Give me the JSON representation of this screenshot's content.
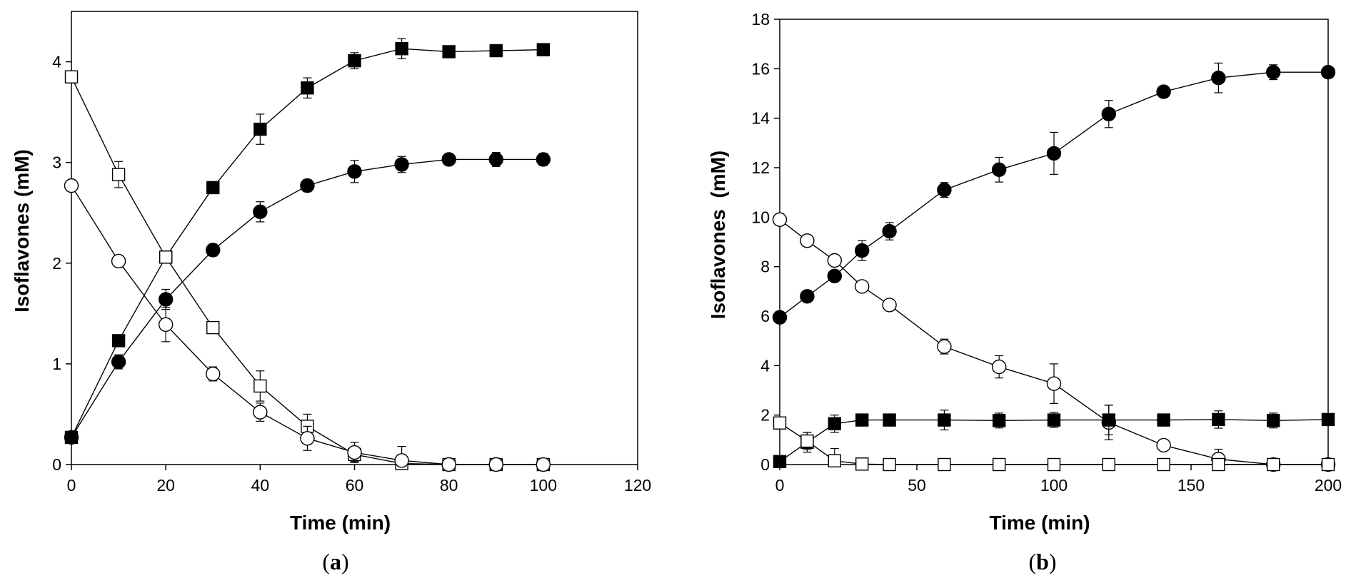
{
  "chart_data": [
    {
      "type": "line",
      "panel_label": "a",
      "xlabel": "Time (min)",
      "ylabel": "Isoflavones (mM)",
      "xlim": [
        0,
        120
      ],
      "ylim": [
        0,
        4.5
      ],
      "xticks": [
        0,
        20,
        40,
        60,
        80,
        100,
        120
      ],
      "yticks": [
        0,
        1,
        2,
        3,
        4
      ],
      "series": [
        {
          "name": "filled squares",
          "marker": "square",
          "filled": true,
          "x": [
            0,
            10,
            20,
            30,
            40,
            50,
            60,
            70,
            80,
            90,
            100
          ],
          "y": [
            0.27,
            1.23,
            2.06,
            2.75,
            3.33,
            3.74,
            4.01,
            4.13,
            4.1,
            4.11,
            4.12
          ],
          "err": [
            0.03,
            0.05,
            0.05,
            0.06,
            0.15,
            0.1,
            0.08,
            0.1,
            0.04,
            0.03,
            0.03
          ]
        },
        {
          "name": "filled circles",
          "marker": "circle",
          "filled": true,
          "x": [
            0,
            10,
            20,
            30,
            40,
            50,
            60,
            70,
            80,
            90,
            100
          ],
          "y": [
            0.27,
            1.02,
            1.64,
            2.13,
            2.51,
            2.77,
            2.91,
            2.98,
            3.03,
            3.03,
            3.03
          ],
          "err": [
            0.03,
            0.07,
            0.1,
            0.06,
            0.1,
            0.06,
            0.11,
            0.08,
            0.04,
            0.07,
            0.06
          ]
        },
        {
          "name": "open squares",
          "marker": "square",
          "filled": false,
          "x": [
            0,
            10,
            20,
            30,
            40,
            50,
            60,
            70,
            80,
            90,
            100
          ],
          "y": [
            3.85,
            2.88,
            2.06,
            1.36,
            0.78,
            0.38,
            0.1,
            0.01,
            0.0,
            0.0,
            0.0
          ],
          "err": [
            0.03,
            0.13,
            0.05,
            0.04,
            0.15,
            0.12,
            0.07,
            0.02,
            0.02,
            0.02,
            0.02
          ]
        },
        {
          "name": "open circles",
          "marker": "circle",
          "filled": false,
          "x": [
            0,
            10,
            20,
            30,
            40,
            50,
            60,
            70,
            80,
            90,
            100
          ],
          "y": [
            2.77,
            2.02,
            1.39,
            0.9,
            0.52,
            0.26,
            0.12,
            0.04,
            0.0,
            0.0,
            0.0
          ],
          "err": [
            0.03,
            0.03,
            0.17,
            0.07,
            0.09,
            0.12,
            0.1,
            0.14,
            0.02,
            0.02,
            0.02
          ]
        }
      ]
    },
    {
      "type": "line",
      "panel_label": "b",
      "xlabel": "Time (min)",
      "ylabel": "Isoflavones  (mM)",
      "xlim": [
        0,
        200
      ],
      "ylim": [
        0,
        18
      ],
      "xticks": [
        0,
        50,
        100,
        150,
        200
      ],
      "yticks": [
        0,
        2,
        4,
        6,
        8,
        10,
        12,
        14,
        16,
        18
      ],
      "series": [
        {
          "name": "filled circles",
          "marker": "circle",
          "filled": true,
          "x": [
            0,
            10,
            20,
            30,
            40,
            60,
            80,
            100,
            120,
            140,
            160,
            180,
            200
          ],
          "y": [
            5.95,
            6.8,
            7.62,
            8.65,
            9.43,
            11.1,
            11.92,
            12.58,
            14.17,
            15.07,
            15.63,
            15.86,
            15.86
          ],
          "err": [
            0.1,
            0.1,
            0.2,
            0.4,
            0.35,
            0.3,
            0.5,
            0.85,
            0.55,
            0.2,
            0.6,
            0.3,
            0.2
          ]
        },
        {
          "name": "open circles",
          "marker": "circle",
          "filled": false,
          "x": [
            0,
            10,
            20,
            30,
            40,
            60,
            80,
            100,
            120,
            140,
            160,
            180,
            200
          ],
          "y": [
            9.9,
            9.05,
            8.25,
            7.2,
            6.45,
            4.77,
            3.95,
            3.27,
            1.7,
            0.78,
            0.22,
            0.0,
            0.0
          ],
          "err": [
            0.2,
            0.1,
            0.1,
            0.1,
            0.1,
            0.3,
            0.45,
            0.8,
            0.7,
            0.2,
            0.4,
            0.1,
            0.1
          ]
        },
        {
          "name": "filled squares",
          "marker": "square",
          "filled": true,
          "x": [
            0,
            10,
            20,
            30,
            40,
            60,
            80,
            100,
            120,
            140,
            160,
            180,
            200
          ],
          "y": [
            0.12,
            0.9,
            1.65,
            1.8,
            1.8,
            1.8,
            1.78,
            1.8,
            1.8,
            1.8,
            1.82,
            1.78,
            1.82
          ],
          "err": [
            0.05,
            0.4,
            0.35,
            0.1,
            0.1,
            0.4,
            0.3,
            0.3,
            0.6,
            0.1,
            0.35,
            0.3,
            0.1
          ]
        },
        {
          "name": "open squares",
          "marker": "square",
          "filled": false,
          "x": [
            0,
            10,
            20,
            30,
            40,
            60,
            80,
            100,
            120,
            140,
            160,
            180,
            200
          ],
          "y": [
            1.68,
            0.95,
            0.15,
            0.02,
            0.0,
            0.0,
            0.0,
            0.0,
            0.0,
            0.0,
            0.0,
            0.0,
            0.0
          ],
          "err": [
            0.1,
            0.35,
            0.5,
            0.05,
            0.05,
            0.05,
            0.05,
            0.05,
            0.05,
            0.05,
            0.05,
            0.05,
            0.05
          ]
        }
      ]
    }
  ]
}
